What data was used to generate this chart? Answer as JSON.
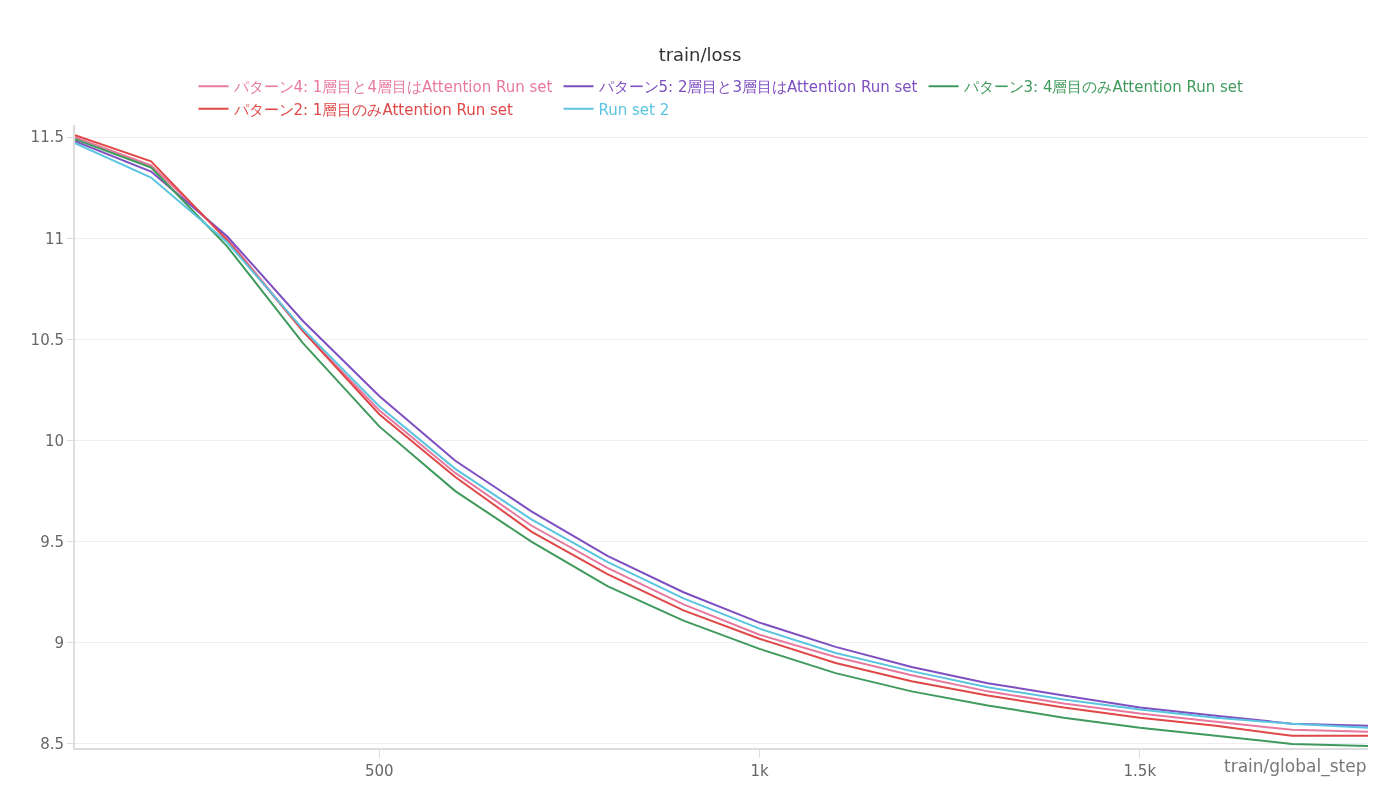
{
  "chart_data": {
    "type": "line",
    "title": "train/loss",
    "xlabel": "train/global_step",
    "x": [
      100,
      200,
      300,
      400,
      500,
      600,
      700,
      800,
      900,
      1000,
      1100,
      1200,
      1300,
      1400,
      1500,
      1600,
      1700,
      1800
    ],
    "series": [
      {
        "name": "パターン4: 1層目と4層目はAttention Run set",
        "color": "#e8799e",
        "values": [
          11.5,
          11.36,
          11.0,
          10.54,
          10.15,
          9.84,
          9.58,
          9.37,
          9.19,
          9.04,
          8.93,
          8.84,
          8.76,
          8.7,
          8.65,
          8.61,
          8.57,
          8.56
        ]
      },
      {
        "name": "パターン5: 2層目と3層目はAttention Run set",
        "color": "#7e4fc0",
        "values": [
          11.48,
          11.33,
          11.01,
          10.59,
          10.22,
          9.9,
          9.65,
          9.43,
          9.25,
          9.1,
          8.98,
          8.88,
          8.8,
          8.74,
          8.68,
          8.64,
          8.6,
          8.59
        ]
      },
      {
        "name": "パターン3: 4層目のみAttention Run set",
        "color": "#3f9a5c",
        "values": [
          11.49,
          11.35,
          10.96,
          10.48,
          10.07,
          9.75,
          9.5,
          9.28,
          9.11,
          8.97,
          8.85,
          8.76,
          8.69,
          8.63,
          8.58,
          8.54,
          8.5,
          8.49
        ]
      },
      {
        "name": "パターン2: 1層目のみAttention Run set",
        "color": "#e04848",
        "values": [
          11.51,
          11.38,
          10.99,
          10.54,
          10.13,
          9.82,
          9.55,
          9.34,
          9.16,
          9.02,
          8.9,
          8.81,
          8.74,
          8.68,
          8.63,
          8.59,
          8.54,
          8.54
        ]
      },
      {
        "name": "Run set 2",
        "color": "#5bc4e0",
        "values": [
          11.47,
          11.3,
          10.98,
          10.55,
          10.17,
          9.86,
          9.61,
          9.4,
          9.22,
          9.07,
          8.95,
          8.86,
          8.78,
          8.72,
          8.67,
          8.63,
          8.6,
          8.58
        ]
      }
    ],
    "xlim": [
      100,
      1800
    ],
    "xticks": [
      500,
      {
        "value": 1000,
        "label": "1k"
      },
      {
        "value": 1500,
        "label": "1.5k"
      }
    ],
    "ylim": [
      8.48,
      11.56
    ],
    "yticks": [
      8.5,
      9,
      9.5,
      10,
      10.5,
      11,
      11.5
    ],
    "grid": "y",
    "legend": "top",
    "line_style": "solid"
  }
}
